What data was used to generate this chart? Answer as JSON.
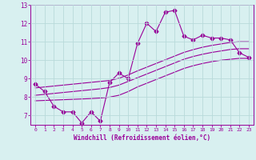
{
  "xlabel": "Windchill (Refroidissement éolien,°C)",
  "x_values": [
    0,
    1,
    2,
    3,
    4,
    5,
    6,
    7,
    8,
    9,
    10,
    11,
    12,
    13,
    14,
    15,
    16,
    17,
    18,
    19,
    20,
    21,
    22,
    23
  ],
  "line1_y": [
    8.7,
    8.3,
    7.5,
    7.2,
    7.2,
    6.6,
    7.2,
    6.7,
    8.8,
    9.3,
    9.0,
    10.9,
    12.0,
    11.55,
    12.6,
    12.7,
    11.3,
    11.1,
    11.35,
    11.2,
    11.2,
    11.1,
    10.4,
    10.15
  ],
  "line2_y": [
    7.8,
    7.82,
    7.84,
    7.86,
    7.88,
    7.9,
    7.92,
    7.95,
    8.0,
    8.1,
    8.3,
    8.55,
    8.75,
    8.95,
    9.15,
    9.35,
    9.55,
    9.7,
    9.82,
    9.92,
    10.0,
    10.05,
    10.1,
    10.1
  ],
  "line3_y": [
    8.1,
    8.15,
    8.2,
    8.25,
    8.3,
    8.35,
    8.4,
    8.45,
    8.52,
    8.65,
    8.85,
    9.05,
    9.25,
    9.45,
    9.65,
    9.85,
    10.05,
    10.2,
    10.32,
    10.42,
    10.5,
    10.58,
    10.62,
    10.62
  ],
  "line4_y": [
    8.5,
    8.55,
    8.6,
    8.65,
    8.7,
    8.75,
    8.8,
    8.85,
    8.9,
    9.02,
    9.2,
    9.42,
    9.62,
    9.82,
    10.02,
    10.22,
    10.42,
    10.57,
    10.7,
    10.8,
    10.88,
    10.96,
    11.0,
    11.0
  ],
  "line_color": "#990099",
  "bg_color": "#d8f0f0",
  "grid_color": "#b8dada",
  "ylim_min": 6.5,
  "ylim_max": 13.0,
  "xlim_min": -0.5,
  "xlim_max": 23.5,
  "yticks": [
    7,
    8,
    9,
    10,
    11,
    12,
    13
  ],
  "xticks": [
    0,
    1,
    2,
    3,
    4,
    5,
    6,
    7,
    8,
    9,
    10,
    11,
    12,
    13,
    14,
    15,
    16,
    17,
    18,
    19,
    20,
    21,
    22,
    23
  ]
}
